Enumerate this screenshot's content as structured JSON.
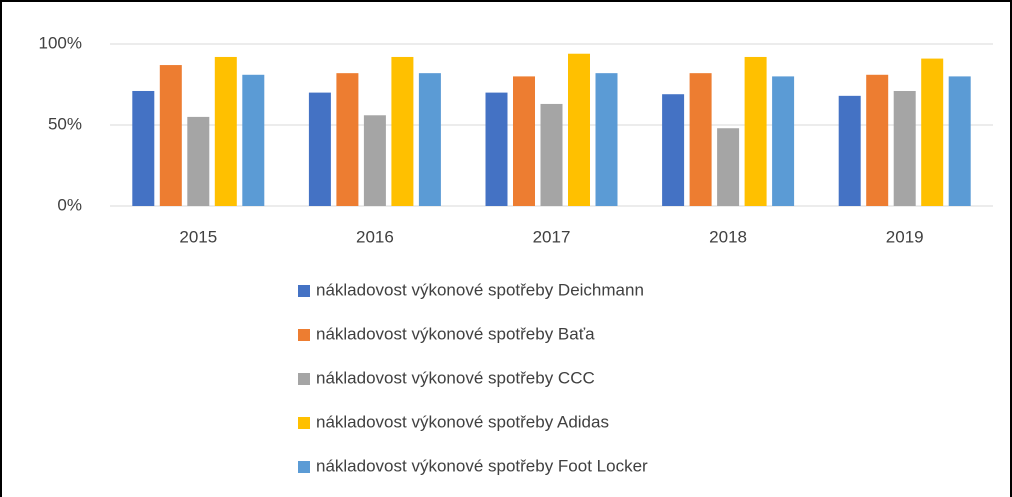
{
  "chart_data": {
    "type": "bar",
    "categories": [
      "2015",
      "2016",
      "2017",
      "2018",
      "2019"
    ],
    "series": [
      {
        "name": "nákladovost výkonové spotřeby Deichmann",
        "color": "#4472c4",
        "values": [
          71,
          70,
          70,
          69,
          68
        ]
      },
      {
        "name": "nákladovost výkonové spotřeby Baťa",
        "color": "#ed7d31",
        "values": [
          87,
          82,
          80,
          82,
          81
        ]
      },
      {
        "name": "nákladovost výkonové spotřeby CCC",
        "color": "#a5a5a5",
        "values": [
          55,
          56,
          63,
          48,
          71
        ]
      },
      {
        "name": "nákladovost výkonové spotřeby Adidas",
        "color": "#ffc000",
        "values": [
          92,
          92,
          94,
          92,
          91
        ]
      },
      {
        "name": "nákladovost výkonové spotřeby Foot Locker",
        "color": "#5b9bd5",
        "values": [
          81,
          82,
          82,
          80,
          80
        ]
      }
    ],
    "ylim": [
      0,
      100
    ],
    "yticks": [
      {
        "value": 0,
        "label": "0%"
      },
      {
        "value": 50,
        "label": "50%"
      },
      {
        "value": 100,
        "label": "100%"
      }
    ],
    "grid": true,
    "legend": "bottom"
  }
}
